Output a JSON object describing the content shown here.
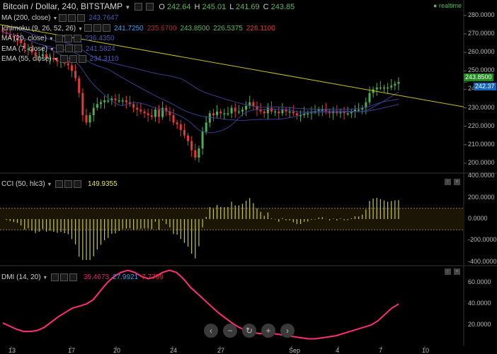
{
  "header": {
    "title": "Bitcoin / Dollar, 240, BITSTAMP",
    "ohlc": [
      {
        "k": "O",
        "v": "242.64"
      },
      {
        "k": "H",
        "v": "245.01"
      },
      {
        "k": "L",
        "v": "241.69"
      },
      {
        "k": "C",
        "v": "243.85"
      }
    ],
    "realtime_label": "realtime"
  },
  "indicators": [
    {
      "label": "MA (200, close)",
      "values": [
        {
          "v": "243.7647",
          "c": "#4c5bb8"
        }
      ]
    },
    {
      "label": "Ichimoku (9, 26, 52, 26)",
      "values": [
        {
          "v": "241.7250",
          "c": "#3aa0e8"
        },
        {
          "v": "235.6700",
          "c": "#b03030"
        },
        {
          "v": "243.8500",
          "c": "#5cb85c"
        },
        {
          "v": "226.5375",
          "c": "#5cb85c"
        },
        {
          "v": "226.1100",
          "c": "#e03a3a"
        }
      ]
    },
    {
      "label": "MA (20, close)",
      "values": [
        {
          "v": "236.4350",
          "c": "#4c5bb8"
        }
      ]
    },
    {
      "label": "EMA (7, close)",
      "values": [
        {
          "v": "241.5824",
          "c": "#4c5bb8"
        }
      ]
    },
    {
      "label": "EMA (55, close)",
      "values": [
        {
          "v": "234.3110",
          "c": "#4c5bb8"
        }
      ]
    }
  ],
  "price_axis": {
    "ticks": [
      "280.0000",
      "270.0000",
      "260.0000",
      "250.0000",
      "240.0000",
      "230.0000",
      "220.0000",
      "210.0000",
      "200.0000"
    ],
    "last_price": "243.8500",
    "other_tag": "242.37"
  },
  "cci_panel": {
    "label": "CCI (50, hlc3)",
    "value": "149.9355",
    "ticks": [
      "400.0000",
      "200.0000",
      "0.0000",
      "-200.0000",
      "-400.0000"
    ]
  },
  "dmi_panel": {
    "label": "DMI (14, 20)",
    "values": [
      {
        "v": "39.4673",
        "c": "#e02070"
      },
      {
        "v": "27.9921",
        "c": "#3aa0e8"
      },
      {
        "v": "7.7799",
        "c": "#e03030"
      }
    ],
    "ticks": [
      "60.0000",
      "40.0000",
      "20.0000"
    ]
  },
  "x_axis": [
    "13",
    "17",
    "20",
    "24",
    "27",
    "Sep",
    "4",
    "7",
    "10"
  ],
  "zoom_controls": [
    {
      "name": "scroll-left-button",
      "glyph": "‹"
    },
    {
      "name": "zoom-out-button",
      "glyph": "−"
    },
    {
      "name": "reset-button",
      "glyph": "↻"
    },
    {
      "name": "zoom-in-button",
      "glyph": "+"
    },
    {
      "name": "scroll-right-button",
      "glyph": "›"
    }
  ],
  "colors": {
    "up": "#4caf50",
    "down": "#e53935",
    "trendline": "#c8c020",
    "ma": "#3a3f8f",
    "cci": "#c8c840",
    "dmi": "#ff2d7a"
  },
  "chart_data": [
    {
      "type": "candlestick",
      "title": "Bitcoin / Dollar, 240, BITSTAMP",
      "ylim": [
        195,
        283
      ],
      "last_close": 243.85,
      "closes": [
        271,
        270,
        269,
        268,
        267,
        265,
        262,
        262,
        260,
        258,
        258,
        259,
        257,
        257,
        256,
        255,
        255,
        254,
        253,
        250,
        246,
        238,
        226,
        222,
        226,
        230,
        232,
        233,
        234,
        234,
        235,
        234,
        234,
        234,
        233,
        232,
        230,
        229,
        228,
        227,
        226,
        225,
        229,
        225,
        230,
        228,
        226,
        222,
        221,
        218,
        215,
        212,
        207,
        203,
        208,
        217,
        222,
        227,
        226,
        228,
        227,
        227,
        227,
        230,
        228,
        228,
        229,
        231,
        233,
        231,
        229,
        228,
        227,
        230,
        228,
        228,
        227,
        229,
        228,
        228,
        227,
        226,
        226,
        227,
        227,
        228,
        228,
        229,
        229,
        228,
        227,
        228,
        227,
        228,
        227,
        227,
        228,
        229,
        229,
        230,
        233,
        238,
        240,
        241,
        241,
        241,
        241,
        242,
        243,
        244
      ]
    },
    {
      "type": "line",
      "title": "CCI (50, hlc3)",
      "ylim": [
        -420,
        420
      ],
      "last_value": 149.9355
    },
    {
      "type": "line",
      "title": "DMI (14, 20)",
      "ylim": [
        0,
        75
      ],
      "adx": [
        22,
        19,
        16,
        14,
        14,
        15,
        18,
        23,
        28,
        32,
        36,
        38,
        40,
        44,
        52,
        60,
        66,
        70,
        72,
        70,
        66,
        64,
        66,
        70,
        72,
        70,
        64,
        56,
        50,
        44,
        38,
        32,
        27,
        22,
        18,
        15,
        13,
        12,
        12,
        12,
        11,
        10,
        9,
        8,
        7,
        7,
        8,
        9,
        10,
        12,
        14,
        16,
        18,
        20,
        24,
        30,
        36,
        40
      ]
    }
  ]
}
